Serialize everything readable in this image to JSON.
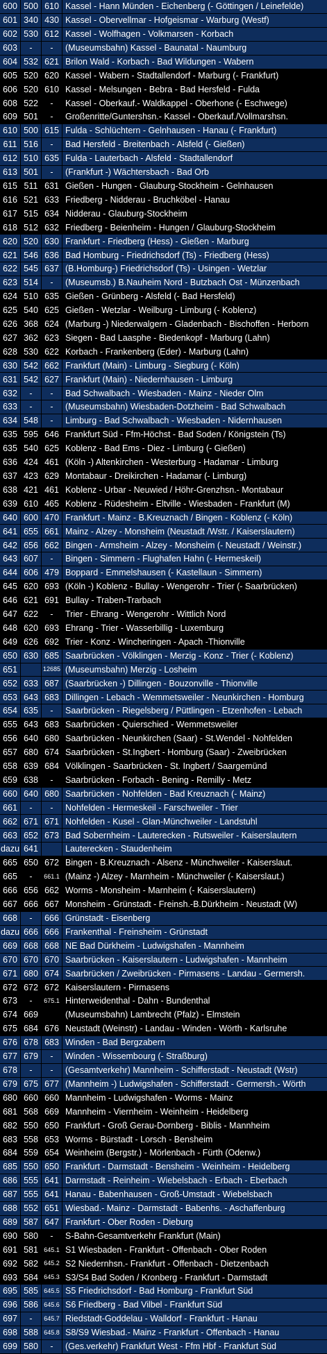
{
  "colors": {
    "row_blue": "#0e2d5c",
    "row_black": "#000000",
    "text": "#ffffff"
  },
  "rows": [
    {
      "c1": "600",
      "c2": "500",
      "c3": "610",
      "route": "Kassel - Hann Münden - Eichenberg (- Göttingen / Leinefelde)",
      "bg": "blue"
    },
    {
      "c1": "601",
      "c2": "340",
      "c3": "430",
      "route": "Kassel - Obervellmar - Hofgeismar - Warburg (Westf)",
      "bg": "blue"
    },
    {
      "c1": "602",
      "c2": "530",
      "c3": "612",
      "route": "Kassel - Wolfhagen - Volkmarsen - Korbach",
      "bg": "blue"
    },
    {
      "c1": "603",
      "c2": "-",
      "c3": "-",
      "route": "(Museumsbahn)  Kassel - Baunatal - Naumburg",
      "bg": "blue"
    },
    {
      "c1": "604",
      "c2": "532",
      "c3": "621",
      "route": "Brilon Wald - Korbach - Bad Wildungen - Wabern",
      "bg": "blue"
    },
    {
      "c1": "605",
      "c2": "520",
      "c3": "620",
      "route": "Kassel - Wabern - Stadtallendorf - Marburg (- Frankfurt)",
      "bg": "black"
    },
    {
      "c1": "606",
      "c2": "520",
      "c3": "610",
      "route": "Kassel - Melsungen - Bebra - Bad Hersfeld - Fulda",
      "bg": "black"
    },
    {
      "c1": "608",
      "c2": "522",
      "c3": "-",
      "route": "Kassel - Oberkauf.- Waldkappel - Oberhone (- Eschwege)",
      "bg": "black"
    },
    {
      "c1": "609",
      "c2": "501",
      "c3": "-",
      "route": "Großenritte/Guntershsn.- Kassel - Oberkauf./Vollmarshsn.",
      "bg": "black"
    },
    {
      "c1": "610",
      "c2": "500",
      "c3": "615",
      "route": "Fulda - Schlüchtern - Gelnhausen - Hanau (- Frankfurt)",
      "bg": "blue"
    },
    {
      "c1": "611",
      "c2": "516",
      "c3": "-",
      "route": "Bad Hersfeld - Breitenbach - Alsfeld (- Gießen)",
      "bg": "blue"
    },
    {
      "c1": "612",
      "c2": "510",
      "c3": "635",
      "route": "Fulda - Lauterbach - Alsfeld - Stadtallendorf",
      "bg": "blue"
    },
    {
      "c1": "613",
      "c2": "501",
      "c3": "-",
      "route": "(Frankfurt -) Wächtersbach - Bad Orb",
      "bg": "blue"
    },
    {
      "c1": "615",
      "c2": "511",
      "c3": "631",
      "route": "Gießen - Hungen - Glauburg-Stockheim - Gelnhausen",
      "bg": "black"
    },
    {
      "c1": "616",
      "c2": "521",
      "c3": "633",
      "route": "Friedberg - Nidderau - Bruchköbel - Hanau",
      "bg": "black"
    },
    {
      "c1": "617",
      "c2": "515",
      "c3": "634",
      "route": "Nidderau - Glauburg-Stockheim",
      "bg": "black"
    },
    {
      "c1": "618",
      "c2": "512",
      "c3": "632",
      "route": "Friedberg - Beienheim - Hungen / Glauburg-Stockheim",
      "bg": "black"
    },
    {
      "c1": "620",
      "c2": "520",
      "c3": "630",
      "route": "Frankfurt - Friedberg (Hess) - Gießen - Marburg",
      "bg": "blue"
    },
    {
      "c1": "621",
      "c2": "546",
      "c3": "636",
      "route": "Bad Homburg - Friedrichsdorf (Ts) - Friedberg (Hess)",
      "bg": "blue"
    },
    {
      "c1": "622",
      "c2": "545",
      "c3": "637",
      "route": "(B.Homburg-) Friedrichsdorf (Ts) - Usingen - Wetzlar",
      "bg": "blue"
    },
    {
      "c1": "623",
      "c2": "514",
      "c3": "-",
      "route": "(Museumsb.) B.Nauheim Nord - Butzbach Ost - Münzenbach",
      "bg": "blue"
    },
    {
      "c1": "624",
      "c2": "510",
      "c3": "635",
      "route": "Gießen - Grünberg - Alsfeld (- Bad Hersfeld)",
      "bg": "black"
    },
    {
      "c1": "625",
      "c2": "540",
      "c3": "625",
      "route": "Gießen - Wetzlar - Weilburg - Limburg (- Koblenz)",
      "bg": "black"
    },
    {
      "c1": "626",
      "c2": "368",
      "c3": "624",
      "route": "(Marburg -) Niederwalgern - Gladenbach - Bischoffen - Herborn",
      "bg": "black"
    },
    {
      "c1": "627",
      "c2": "362",
      "c3": "623",
      "route": "Siegen - Bad Laasphe - Biedenkopf - Marburg (Lahn)",
      "bg": "black"
    },
    {
      "c1": "628",
      "c2": "530",
      "c3": "622",
      "route": "Korbach - Frankenberg (Eder) - Marburg (Lahn)",
      "bg": "black"
    },
    {
      "c1": "630",
      "c2": "542",
      "c3": "662",
      "route": "Frankfurt (Main) - Limburg - Siegburg (- Köln)",
      "bg": "blue"
    },
    {
      "c1": "631",
      "c2": "542",
      "c3": "627",
      "route": "Frankfurt (Main) - Niedernhausen - Limburg",
      "bg": "blue"
    },
    {
      "c1": "632",
      "c2": "-",
      "c3": "-",
      "route": "Bad Schwalbach - Wiesbaden - Mainz - Nieder Olm",
      "bg": "blue"
    },
    {
      "c1": "633",
      "c2": "-",
      "c3": "-",
      "route": "(Museumsbahn) Wiesbaden-Dotzheim - Bad Schwalbach",
      "bg": "blue"
    },
    {
      "c1": "634",
      "c2": "548",
      "c3": "-",
      "route": "Limburg - Bad Schwalbach - Wiesbaden - Nidernhausen",
      "bg": "blue"
    },
    {
      "c1": "635",
      "c2": "595",
      "c3": "646",
      "route": "Frankfurt Süd - Ffm-Höchst - Bad Soden / Königstein (Ts)",
      "bg": "black"
    },
    {
      "c1": "635",
      "c2": "540",
      "c3": "625",
      "route": "Koblenz - Bad Ems - Diez - Limburg (- Gießen)",
      "bg": "black"
    },
    {
      "c1": "636",
      "c2": "424",
      "c3": "461",
      "route": "(Köln -) Altenkirchen - Westerburg - Hadamar - Limburg",
      "bg": "black"
    },
    {
      "c1": "637",
      "c2": "423",
      "c3": "629",
      "route": "Montabaur - Dreikirchen - Hadamar (- Limburg)",
      "bg": "black"
    },
    {
      "c1": "638",
      "c2": "421",
      "c3": "461",
      "route": "Koblenz - Urbar - Neuwied / Höhr-Grenzhsn.- Montabaur",
      "bg": "black"
    },
    {
      "c1": "639",
      "c2": "610",
      "c3": "465",
      "route": "Koblenz - Rüdesheim - Eltville - Wiesbaden - Frankfurt (M)",
      "bg": "black"
    },
    {
      "c1": "640",
      "c2": "600",
      "c3": "470",
      "route": "Frankfurt - Mainz - B.Kreuznach / Bingen - Koblenz (- Köln)",
      "bg": "blue"
    },
    {
      "c1": "641",
      "c2": "655",
      "c3": "661",
      "route": "Mainz - Alzey - Monsheim (Neustadt /Wstr. / Kaiserslautern)",
      "bg": "blue"
    },
    {
      "c1": "642",
      "c2": "656",
      "c3": "662",
      "route": "Bingen - Armsheim - Alzey - Monsheim (- Neustadt / Weinstr.)",
      "bg": "blue"
    },
    {
      "c1": "643",
      "c2": "607",
      "c3": "-",
      "route": "Bingen - Simmern - Flughafen Hahn (- Hermeskeil)",
      "bg": "blue"
    },
    {
      "c1": "644",
      "c2": "606",
      "c3": "479",
      "route": "Boppard - Emmelshausen  (- Kastellaun - Simmern)",
      "bg": "blue"
    },
    {
      "c1": "645",
      "c2": "620",
      "c3": "693",
      "route": "(Köln -) Koblenz - Bullay - Wengerohr - Trier (- Saarbrücken)",
      "bg": "black"
    },
    {
      "c1": "646",
      "c2": "621",
      "c3": "691",
      "route": "Bullay - Traben-Trarbach",
      "bg": "black"
    },
    {
      "c1": "647",
      "c2": "622",
      "c3": "-",
      "route": "Trier - Ehrang - Wengerohr - Wittlich Nord",
      "bg": "black"
    },
    {
      "c1": "648",
      "c2": "620",
      "c3": "693",
      "route": "Ehrang - Trier - Wasserbillig - Luxemburg",
      "bg": "black"
    },
    {
      "c1": "649",
      "c2": "626",
      "c3": "692",
      "route": "Trier - Konz - Wincheringen - Apach -Thionville",
      "bg": "black"
    },
    {
      "c1": "650",
      "c2": "630",
      "c3": "685",
      "route": "Saarbrücken - Völklingen - Merzig - Konz - Trier (- Koblenz)",
      "bg": "blue"
    },
    {
      "c1": "651",
      "c2": "",
      "c3": "12685",
      "route": "(Museumsbahn) Merzig - Losheim",
      "bg": "blue"
    },
    {
      "c1": "652",
      "c2": "633",
      "c3": "687",
      "route": "(Saarbrücken -) Dillingen - Bouzonville - Thionville",
      "bg": "blue"
    },
    {
      "c1": "653",
      "c2": "643",
      "c3": "683",
      "route": "Dillingen - Lebach - Wemmetsweiler - Neunkirchen - Homburg",
      "bg": "blue"
    },
    {
      "c1": "654",
      "c2": "635",
      "c3": "-",
      "route": "Saarbrücken - Riegelsberg / Püttlingen - Etzenhofen - Lebach",
      "bg": "blue"
    },
    {
      "c1": "655",
      "c2": "643",
      "c3": "683",
      "route": "Saarbrücken - Quierschied - Wemmetsweiler",
      "bg": "black"
    },
    {
      "c1": "656",
      "c2": "640",
      "c3": "680",
      "route": "Saarbrücken - Neunkirchen (Saar) - St.Wendel - Nohfelden",
      "bg": "black"
    },
    {
      "c1": "657",
      "c2": "680",
      "c3": "674",
      "route": "Saarbrücken - St.Ingbert - Homburg (Saar) - Zweibrücken",
      "bg": "black"
    },
    {
      "c1": "658",
      "c2": "639",
      "c3": "684",
      "route": "Völklingen - Saarbrücken - St. Ingbert / Saargemünd",
      "bg": "black"
    },
    {
      "c1": "659",
      "c2": "638",
      "c3": "-",
      "route": "Saarbrücken - Forbach - Bening - Remilly - Metz",
      "bg": "black"
    },
    {
      "c1": "660",
      "c2": "640",
      "c3": "680",
      "route": "Saarbrücken - Nohfelden - Bad Kreuznach (- Mainz)",
      "bg": "blue"
    },
    {
      "c1": "661",
      "c2": "-",
      "c3": "-",
      "route": "Nohfelden - Hermeskeil - Farschweiler - Trier",
      "bg": "blue"
    },
    {
      "c1": "662",
      "c2": "671",
      "c3": "671",
      "route": "Nohfelden - Kusel - Glan-Münchweiler - Landstuhl",
      "bg": "blue"
    },
    {
      "c1": "663",
      "c2": "652",
      "c3": "673",
      "route": "Bad Sobernheim - Lauterecken - Rutsweiler - Kaiserslautern",
      "bg": "blue"
    },
    {
      "c1": "dazu",
      "c2": "641",
      "c3": "",
      "route": "Lauterecken - Staudenheim",
      "bg": "blue"
    },
    {
      "c1": "665",
      "c2": "650",
      "c3": "672",
      "route": "Bingen - B.Kreuznach - Alsenz - Münchweiler - Kaiserslaut.",
      "bg": "black"
    },
    {
      "c1": "665",
      "c2": "-",
      "c3": "661.1",
      "route": "(Mainz -) Alzey - Marnheim - Münchweiler (- Kaiserslaut.)",
      "bg": "black"
    },
    {
      "c1": "666",
      "c2": "656",
      "c3": "662",
      "route": "Worms - Monsheim - Marnheim (- Kaiserslautern)",
      "bg": "black"
    },
    {
      "c1": "667",
      "c2": "666",
      "c3": "667",
      "route": "Monsheim - Grünstadt - Freinsh.-B.Dürkheim - Neustadt (W)",
      "bg": "black"
    },
    {
      "c1": "668",
      "c2": "-",
      "c3": "666",
      "route": "Grünstadt - Eisenberg",
      "bg": "blue"
    },
    {
      "c1": "dazu",
      "c2": "666",
      "c3": "666",
      "route": "Frankenthal - Freinsheim - Grünstadt",
      "bg": "blue"
    },
    {
      "c1": "669",
      "c2": "668",
      "c3": "668",
      "route": "NE Bad Dürkheim - Ludwigshafen - Mannheim",
      "bg": "blue"
    },
    {
      "c1": "670",
      "c2": "670",
      "c3": "670",
      "route": "Saarbrücken - Kaiserslautern - Ludwigshafen - Mannheim",
      "bg": "blue"
    },
    {
      "c1": "671",
      "c2": "680",
      "c3": "674",
      "route": "Saarbrücken / Zweibrücken - Pirmasens - Landau - Germersh.",
      "bg": "blue"
    },
    {
      "c1": "672",
      "c2": "672",
      "c3": "672",
      "route": "Kaiserslautern - Pirmasens",
      "bg": "black"
    },
    {
      "c1": "673",
      "c2": "-",
      "c3": "675.1",
      "route": "Hinterweidenthal - Dahn - Bundenthal",
      "bg": "black"
    },
    {
      "c1": "674",
      "c2": "669",
      "c3": "",
      "route": "(Museumsbahn) Lambrecht (Pfalz) - Elmstein",
      "bg": "black"
    },
    {
      "c1": "675",
      "c2": "684",
      "c3": "676",
      "route": "Neustadt (Weinstr) - Landau - Winden - Wörth - Karlsruhe",
      "bg": "black"
    },
    {
      "c1": "676",
      "c2": "678",
      "c3": "683",
      "route": "Winden - Bad Bergzabern",
      "bg": "blue"
    },
    {
      "c1": "677",
      "c2": "679",
      "c3": "-",
      "route": "Winden - Wissembourg (- Straßburg)",
      "bg": "blue"
    },
    {
      "c1": "678",
      "c2": "-",
      "c3": "-",
      "route": "(Gesamtverkehr) Mannheim - Schifferstadt - Neustadt (Wstr)",
      "bg": "blue"
    },
    {
      "c1": "679",
      "c2": "675",
      "c3": "677",
      "route": "(Mannheim -) Ludwigshafen - Schifferstadt - Germersh.- Wörth",
      "bg": "blue"
    },
    {
      "c1": "680",
      "c2": "660",
      "c3": "660",
      "route": "Mannheim - Ludwigshafen - Worms - Mainz",
      "bg": "black"
    },
    {
      "c1": "681",
      "c2": "568",
      "c3": "669",
      "route": "Mannheim - Viernheim - Weinheim - Heidelberg",
      "bg": "black"
    },
    {
      "c1": "682",
      "c2": "550",
      "c3": "650",
      "route": "Frankfurt - Groß Gerau-Dornberg - Biblis - Mannheim",
      "bg": "black"
    },
    {
      "c1": "683",
      "c2": "558",
      "c3": "653",
      "route": "Worms - Bürstadt - Lorsch - Bensheim",
      "bg": "black"
    },
    {
      "c1": "684",
      "c2": "559",
      "c3": "654",
      "route": "Weinheim (Bergstr.) - Mörlenbach - Fürth (Odenw.)",
      "bg": "black"
    },
    {
      "c1": "685",
      "c2": "550",
      "c3": "650",
      "route": "Frankfurt - Darmstadt - Bensheim - Weinheim - Heidelberg",
      "bg": "blue"
    },
    {
      "c1": "686",
      "c2": "555",
      "c3": "641",
      "route": "Darmstadt - Reinheim - Wiebelsbach - Erbach - Eberbach",
      "bg": "blue"
    },
    {
      "c1": "687",
      "c2": "555",
      "c3": "641",
      "route": "Hanau - Babenhausen - Groß-Umstadt - Wiebelsbach",
      "bg": "blue"
    },
    {
      "c1": "688",
      "c2": "552",
      "c3": "651",
      "route": "Wiesbad.- Mainz - Darmstadt - Babenhs. - Aschaffenburg",
      "bg": "blue"
    },
    {
      "c1": "689",
      "c2": "587",
      "c3": "647",
      "route": "Frankfurt - Ober Roden - Dieburg",
      "bg": "blue"
    },
    {
      "c1": "690",
      "c2": "580",
      "c3": "-",
      "route": "S-Bahn-Gesamtverkehr Frankfurt (Main)",
      "bg": "black"
    },
    {
      "c1": "691",
      "c2": "581",
      "c3": "645.1",
      "route": "S1 Wiesbaden - Frankfurt - Offenbach - Ober Roden",
      "bg": "black"
    },
    {
      "c1": "692",
      "c2": "582",
      "c3": "645.2",
      "route": "S2 Niedernhsn.- Frankfurt - Offenbach - Dietzenbach",
      "bg": "black"
    },
    {
      "c1": "693",
      "c2": "584",
      "c3": "645.3",
      "route": "S3/S4 Bad Soden / Kronberg - Frankfurt - Darmstadt",
      "bg": "black"
    },
    {
      "c1": "695",
      "c2": "585",
      "c3": "645.5",
      "route": "S5 Friedrichsdorf - Bad Homburg - Frankfurt Süd",
      "bg": "blue"
    },
    {
      "c1": "696",
      "c2": "586",
      "c3": "645.6",
      "route": "S6 Friedberg - Bad Vilbel - Frankfurt Süd",
      "bg": "blue"
    },
    {
      "c1": "697",
      "c2": "-",
      "c3": "645.7",
      "route": "Riedstadt-Goddelau - Walldorf - Frankfurt - Hanau",
      "bg": "blue"
    },
    {
      "c1": "698",
      "c2": "588",
      "c3": "645.8",
      "route": "S8/S9 Wiesbad.- Mainz - Frankfurt - Offenbach - Hanau",
      "bg": "blue"
    },
    {
      "c1": "699",
      "c2": "580",
      "c3": "-",
      "route": "(Ges.verkehr) Frankfurt West - Ffm Hbf - Frankfurt Süd",
      "bg": "blue"
    }
  ]
}
